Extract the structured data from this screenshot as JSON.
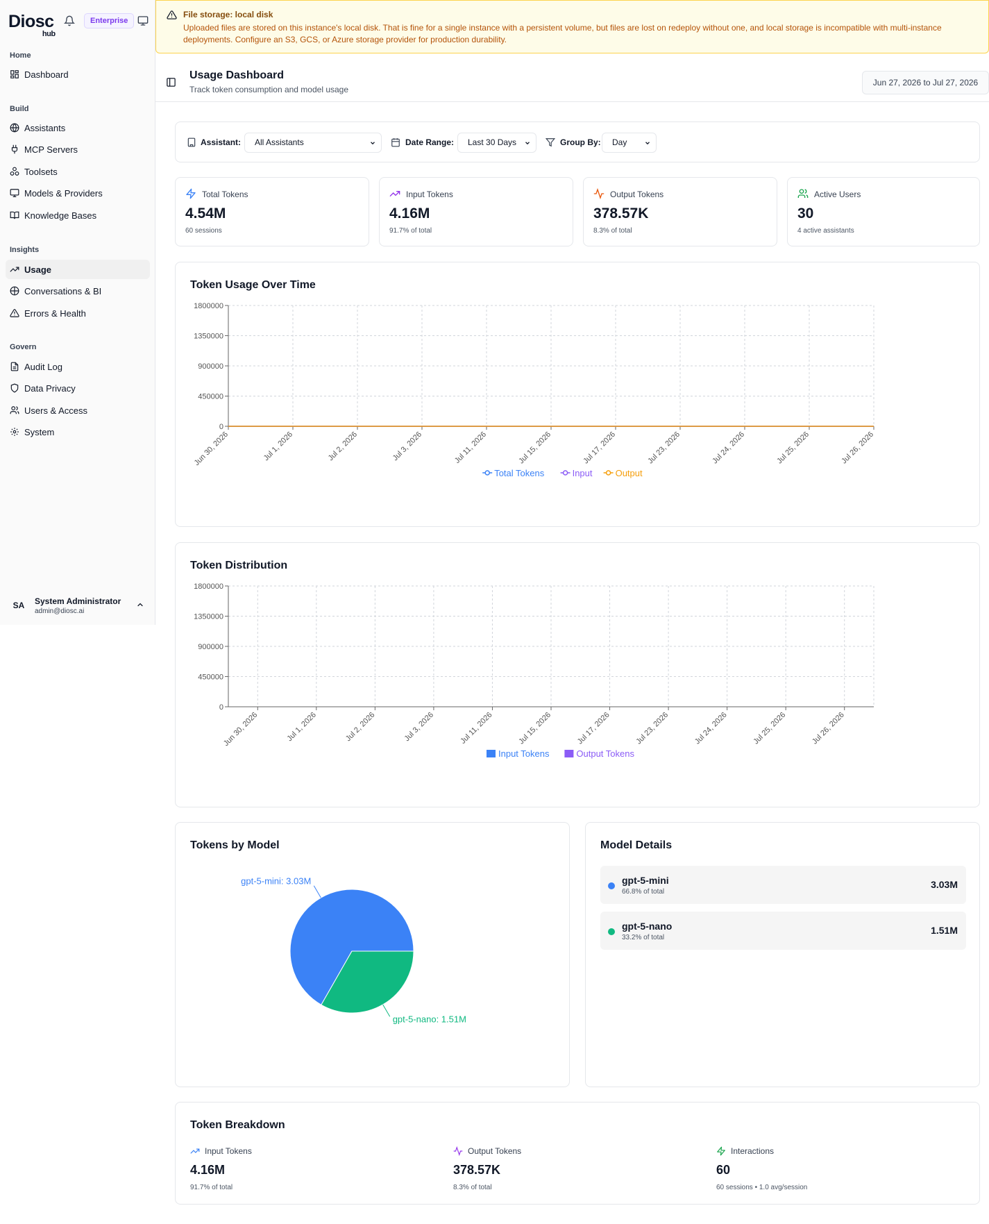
{
  "brand": {
    "name": "Diosc",
    "sub": "hub",
    "badge": "Enterprise"
  },
  "sidebar": {
    "sections": [
      {
        "label": "Home"
      },
      {
        "label": "Build"
      },
      {
        "label": "Insights"
      },
      {
        "label": "Govern"
      }
    ],
    "items": [
      {
        "label": "Dashboard",
        "icon": "dashboard-icon"
      },
      {
        "label": "Assistants",
        "icon": "globe-icon"
      },
      {
        "label": "MCP Servers",
        "icon": "plug-icon"
      },
      {
        "label": "Toolsets",
        "icon": "cluster-icon"
      },
      {
        "label": "Models & Providers",
        "icon": "monitor-icon"
      },
      {
        "label": "Knowledge Bases",
        "icon": "book-icon"
      },
      {
        "label": "Usage",
        "icon": "trend-icon",
        "active": true
      },
      {
        "label": "Conversations & BI",
        "icon": "chart-globe-icon"
      },
      {
        "label": "Errors & Health",
        "icon": "warning-icon"
      },
      {
        "label": "Audit Log",
        "icon": "file-icon"
      },
      {
        "label": "Data Privacy",
        "icon": "shield-icon"
      },
      {
        "label": "Users & Access",
        "icon": "users-icon"
      },
      {
        "label": "System",
        "icon": "gear-icon"
      }
    ],
    "user": {
      "initials": "SA",
      "name": "System Administrator",
      "email": "admin@diosc.ai"
    }
  },
  "alert": {
    "title": "File storage: local disk",
    "body": "Uploaded files are stored on this instance's local disk. That is fine for a single instance with a persistent volume, but files are lost on redeploy without one, and local storage is incompatible with multi-instance deployments. Configure an S3, GCS, or Azure storage provider for production durability."
  },
  "header": {
    "title": "Usage Dashboard",
    "subtitle": "Track token consumption and model usage",
    "date_range": "Jun 27, 2026 to Jul 27, 2026"
  },
  "filters": {
    "assistant_label": "Assistant:",
    "assistant_value": "All Assistants",
    "date_label": "Date Range:",
    "date_value": "Last 30 Days",
    "group_label": "Group By:",
    "group_value": "Day"
  },
  "stats": [
    {
      "label": "Total Tokens",
      "value": "4.54M",
      "sub": "60 sessions",
      "icon": "bolt-icon",
      "color": "#3b82f6"
    },
    {
      "label": "Input Tokens",
      "value": "4.16M",
      "sub": "91.7% of total",
      "icon": "trend-up-icon",
      "color": "#9333ea"
    },
    {
      "label": "Output Tokens",
      "value": "378.57K",
      "sub": "8.3% of total",
      "icon": "activity-icon",
      "color": "#ea580c"
    },
    {
      "label": "Active Users",
      "value": "30",
      "sub": "4 active assistants",
      "icon": "users-icon",
      "color": "#16a34a"
    }
  ],
  "chart_data": [
    {
      "type": "line",
      "title": "Token Usage Over Time",
      "categories": [
        "Jun 30, 2026",
        "Jul 1, 2026",
        "Jul 2, 2026",
        "Jul 3, 2026",
        "Jul 11, 2026",
        "Jul 15, 2026",
        "Jul 17, 2026",
        "Jul 23, 2026",
        "Jul 24, 2026",
        "Jul 25, 2026",
        "Jul 26, 2026"
      ],
      "yticks": [
        "0",
        "450000",
        "900000",
        "1350000",
        "1800000"
      ],
      "ylim": [
        0,
        1800000
      ],
      "series": [
        {
          "name": "Total Tokens",
          "color": "#3b82f6"
        },
        {
          "name": "Input",
          "color": "#8b5cf6"
        },
        {
          "name": "Output",
          "color": "#f59e0b"
        }
      ],
      "grid": true,
      "legend": "bottom"
    },
    {
      "type": "bar",
      "title": "Token Distribution",
      "categories": [
        "Jun 30, 2026",
        "Jul 1, 2026",
        "Jul 2, 2026",
        "Jul 3, 2026",
        "Jul 11, 2026",
        "Jul 15, 2026",
        "Jul 17, 2026",
        "Jul 23, 2026",
        "Jul 24, 2026",
        "Jul 25, 2026",
        "Jul 26, 2026"
      ],
      "yticks": [
        "0",
        "450000",
        "900000",
        "1350000",
        "1800000"
      ],
      "ylim": [
        0,
        1800000
      ],
      "series": [
        {
          "name": "Input Tokens",
          "color": "#3b82f6"
        },
        {
          "name": "Output Tokens",
          "color": "#8b5cf6"
        }
      ],
      "grid": true,
      "legend": "bottom"
    },
    {
      "type": "pie",
      "title": "Tokens by Model",
      "slices": [
        {
          "label": "gpt-5-mini: 3.03M",
          "value": 3.03,
          "color": "#3b82f6"
        },
        {
          "label": "gpt-5-nano: 1.51M",
          "value": 1.51,
          "color": "#10b981"
        }
      ]
    }
  ],
  "model_details": {
    "title": "Model Details",
    "models": [
      {
        "name": "gpt-5-mini",
        "pct": "66.8% of total",
        "value": "3.03M",
        "color": "#3b82f6"
      },
      {
        "name": "gpt-5-nano",
        "pct": "33.2% of total",
        "value": "1.51M",
        "color": "#10b981"
      }
    ]
  },
  "breakdown": {
    "title": "Token Breakdown",
    "items": [
      {
        "label": "Input Tokens",
        "value": "4.16M",
        "sub": "91.7% of total",
        "color": "#3b82f6"
      },
      {
        "label": "Output Tokens",
        "value": "378.57K",
        "sub": "8.3% of total",
        "color": "#9333ea"
      },
      {
        "label": "Interactions",
        "value": "60",
        "sub": "60 sessions • 1.0 avg/session",
        "color": "#16a34a"
      }
    ]
  }
}
